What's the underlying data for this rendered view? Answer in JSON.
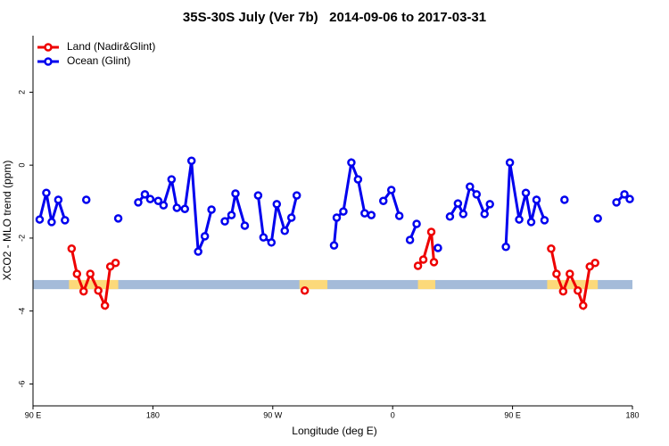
{
  "chart_data": {
    "type": "line",
    "title": "35S-30S July (Ver 7b)   2014-09-06 to 2017-03-31",
    "x_label": "Longitude (deg E)",
    "y_label": "XCO2 - MLO trend (ppm)",
    "xlim": [
      90,
      540
    ],
    "ylim": [
      -6.6,
      3.55
    ],
    "xticks": [
      {
        "value": 90,
        "label": "90 E"
      },
      {
        "value": 180,
        "label": "180"
      },
      {
        "value": 270,
        "label": "90 W"
      },
      {
        "value": 360,
        "label": "0"
      },
      {
        "value": 450,
        "label": "90 E"
      },
      {
        "value": 540,
        "label": "180"
      }
    ],
    "yticks": [
      -6,
      -4,
      -2,
      0,
      2
    ],
    "legend": "top-left",
    "band": {
      "range": [
        -3.4,
        -3.15
      ],
      "color": "#a4bbd9"
    },
    "land_regions": {
      "color": "#fcd97a",
      "range": [
        -3.4,
        -3.15
      ],
      "spans": [
        [
          117,
          154
        ],
        [
          290,
          311
        ],
        [
          379,
          392
        ],
        [
          476,
          514
        ]
      ]
    },
    "series": [
      {
        "name": "Land (Nadir&Glint)",
        "color": "#ee0000",
        "x": [
          119,
          123,
          128,
          133,
          139,
          144,
          148,
          152,
          null,
          294,
          null,
          379,
          383,
          389,
          391,
          null,
          479,
          483,
          488,
          493,
          499,
          503,
          508,
          512
        ],
        "values": [
          -2.29,
          -2.98,
          -3.46,
          -2.98,
          -3.44,
          -3.85,
          -2.78,
          -2.68,
          null,
          -3.44,
          null,
          -2.76,
          -2.59,
          -1.83,
          -2.66,
          null,
          -2.29,
          -2.98,
          -3.46,
          -2.98,
          -3.44,
          -3.85,
          -2.78,
          -2.68
        ]
      },
      {
        "name": "Ocean (Glint)",
        "color": "#0000ee",
        "x": [
          95,
          100,
          104,
          109,
          114,
          null,
          130,
          null,
          154,
          null,
          169,
          174,
          178,
          184,
          188,
          194,
          198,
          204,
          209,
          214,
          219,
          224,
          null,
          234,
          239,
          242,
          249,
          null,
          259,
          263,
          269,
          273,
          279,
          284,
          288,
          null,
          316,
          318,
          323,
          329,
          334,
          339,
          344,
          null,
          353,
          359,
          365,
          null,
          373,
          378,
          null,
          394,
          null,
          403,
          409,
          413,
          418,
          423,
          429,
          433,
          null,
          445,
          448,
          455,
          460,
          464,
          468,
          474,
          null,
          489,
          null,
          514,
          null,
          528,
          534,
          538
        ],
        "values": [
          -1.49,
          -0.76,
          -1.56,
          -0.95,
          -1.51,
          null,
          -0.95,
          null,
          -1.46,
          null,
          -1.02,
          -0.8,
          -0.93,
          -0.98,
          -1.1,
          -0.39,
          -1.17,
          -1.2,
          0.12,
          -2.37,
          -1.95,
          -1.22,
          null,
          -1.54,
          -1.37,
          -0.78,
          -1.66,
          null,
          -0.83,
          -1.98,
          -2.12,
          -1.07,
          -1.8,
          -1.44,
          -0.83,
          null,
          -2.2,
          -1.44,
          -1.27,
          0.07,
          -0.39,
          -1.32,
          -1.37,
          null,
          -0.98,
          -0.68,
          -1.39,
          null,
          -2.05,
          -1.61,
          null,
          -2.27,
          null,
          -1.41,
          -1.05,
          -1.34,
          -0.59,
          -0.8,
          -1.34,
          -1.07,
          null,
          -2.24,
          0.07,
          -1.49,
          -0.76,
          -1.56,
          -0.95,
          -1.51,
          null,
          -0.95,
          null,
          -1.46,
          null,
          -1.02,
          -0.8,
          -0.93
        ]
      }
    ]
  }
}
